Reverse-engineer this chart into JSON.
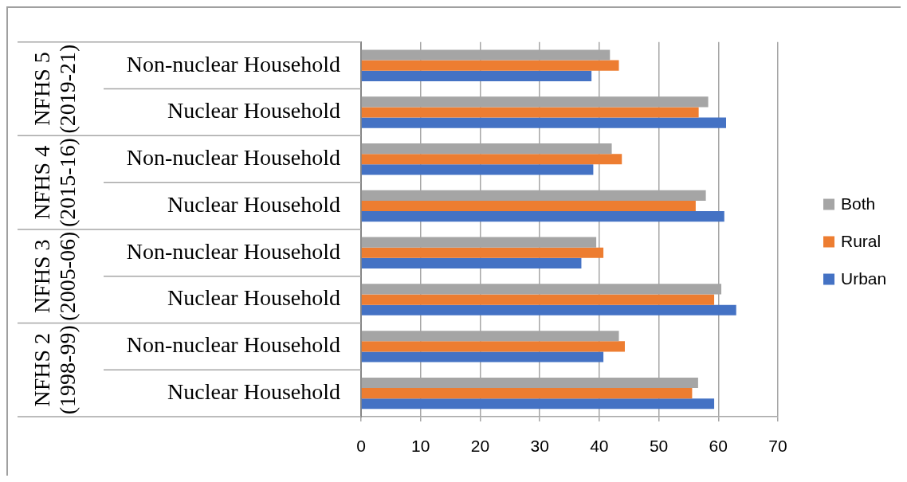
{
  "chart_data": {
    "type": "bar",
    "orientation": "horizontal",
    "categories": [
      "Non-nuclear Household",
      "Nuclear Household",
      "Non-nuclear Household",
      "Nuclear Household",
      "Non-nuclear Household",
      "Nuclear Household",
      "Non-nuclear Household",
      "Nuclear Household"
    ],
    "annotations": [
      "NFHS 5 (2019-21)",
      "NFHS 4 (2015-16)",
      "NFHS 3 (2005-06)",
      "NFHS 2 (1998-99)"
    ],
    "series": [
      {
        "name": "Both",
        "color": "#a5a5a5",
        "values": [
          41.8,
          58.3,
          42.1,
          57.9,
          39.5,
          60.5,
          43.3,
          56.6
        ]
      },
      {
        "name": "Rural",
        "color": "#ed7d31",
        "values": [
          43.3,
          56.7,
          43.8,
          56.2,
          40.7,
          59.3,
          44.3,
          55.6
        ]
      },
      {
        "name": "Urban",
        "color": "#4472c4",
        "values": [
          38.7,
          61.3,
          39.0,
          61.0,
          37.0,
          63.0,
          40.7,
          59.3
        ]
      }
    ],
    "xlim": [
      0,
      70
    ],
    "xticks": [
      0,
      10,
      20,
      30,
      40,
      50,
      60,
      70
    ],
    "grid": "x",
    "legend": "right"
  }
}
